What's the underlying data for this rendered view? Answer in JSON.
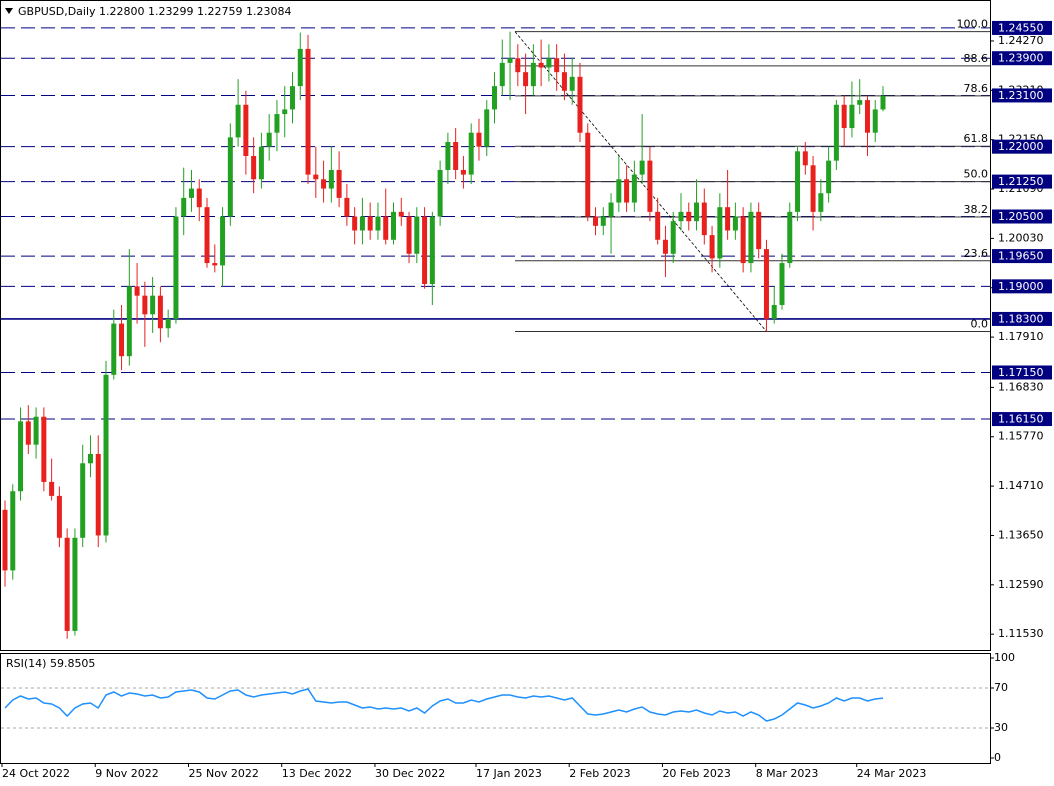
{
  "chart_data": {
    "type": "candlestick",
    "title": "GBPUSD,Daily  1.22800 1.23299 1.22759 1.23084",
    "up_color": "#22a022",
    "down_color": "#e8201e",
    "ylim": [
      1.1119,
      1.2515
    ],
    "yticks": [
      {
        "value": 1.2427,
        "label": "1.24270"
      },
      {
        "value": 1.2321,
        "label": "1.23210"
      },
      {
        "value": 1.2215,
        "label": "1.22150"
      },
      {
        "value": 1.2109,
        "label": "1.21090"
      },
      {
        "value": 1.2003,
        "label": "1.20030"
      },
      {
        "value": 1.1897,
        "label": "1.18970"
      },
      {
        "value": 1.1791,
        "label": "1.17910"
      },
      {
        "value": 1.1683,
        "label": "1.16830"
      },
      {
        "value": 1.1577,
        "label": "1.15770"
      },
      {
        "value": 1.1471,
        "label": "1.14710"
      },
      {
        "value": 1.1365,
        "label": "1.13650"
      },
      {
        "value": 1.1259,
        "label": "1.12590"
      },
      {
        "value": 1.1153,
        "label": "1.11530"
      }
    ],
    "categories": [
      "24 Oct 2022",
      null,
      null,
      null,
      null,
      null,
      null,
      null,
      null,
      null,
      null,
      null,
      "9 Nov 2022",
      null,
      null,
      null,
      null,
      null,
      null,
      null,
      null,
      null,
      null,
      null,
      "25 Nov 2022",
      null,
      null,
      null,
      null,
      null,
      null,
      null,
      null,
      null,
      null,
      null,
      "13 Dec 2022",
      null,
      null,
      null,
      null,
      null,
      null,
      null,
      null,
      null,
      null,
      null,
      "30 Dec 2022",
      null,
      null,
      null,
      null,
      null,
      null,
      null,
      null,
      null,
      null,
      null,
      null,
      "17 Jan 2023",
      null,
      null,
      null,
      null,
      null,
      null,
      null,
      null,
      null,
      null,
      null,
      "2 Feb 2023",
      null,
      null,
      null,
      null,
      null,
      null,
      null,
      null,
      null,
      null,
      null,
      "20 Feb 2023",
      null,
      null,
      null,
      null,
      null,
      null,
      null,
      null,
      null,
      null,
      null,
      "8 Mar 2023",
      null,
      null,
      null,
      null,
      null,
      null,
      null,
      null,
      null,
      null,
      null,
      null,
      "24 Mar 2023",
      null,
      null,
      null
    ],
    "ohlc": [
      [
        1.142,
        1.144,
        1.1255,
        1.129
      ],
      [
        1.129,
        1.1475,
        1.127,
        1.146
      ],
      [
        1.146,
        1.164,
        1.144,
        1.161
      ],
      [
        1.161,
        1.1645,
        1.154,
        1.156
      ],
      [
        1.156,
        1.164,
        1.153,
        1.162
      ],
      [
        1.162,
        1.164,
        1.146,
        1.148
      ],
      [
        1.148,
        1.153,
        1.144,
        1.145
      ],
      [
        1.145,
        1.147,
        1.134,
        1.136
      ],
      [
        1.136,
        1.138,
        1.1143,
        1.116
      ],
      [
        1.116,
        1.138,
        1.115,
        1.136
      ],
      [
        1.136,
        1.156,
        1.134,
        1.152
      ],
      [
        1.152,
        1.158,
        1.149,
        1.154
      ],
      [
        1.154,
        1.158,
        1.134,
        1.1365
      ],
      [
        1.1365,
        1.174,
        1.135,
        1.171
      ],
      [
        1.171,
        1.185,
        1.17,
        1.182
      ],
      [
        1.182,
        1.186,
        1.172,
        1.175
      ],
      [
        1.175,
        1.198,
        1.173,
        1.19
      ],
      [
        1.19,
        1.195,
        1.182,
        1.188
      ],
      [
        1.188,
        1.191,
        1.177,
        1.184
      ],
      [
        1.184,
        1.192,
        1.18,
        1.188
      ],
      [
        1.188,
        1.19,
        1.178,
        1.181
      ],
      [
        1.181,
        1.185,
        1.179,
        1.183
      ],
      [
        1.183,
        1.207,
        1.182,
        1.205
      ],
      [
        1.205,
        1.2155,
        1.201,
        1.209
      ],
      [
        1.209,
        1.215,
        1.206,
        1.211
      ],
      [
        1.211,
        1.213,
        1.204,
        1.207
      ],
      [
        1.207,
        1.209,
        1.194,
        1.195
      ],
      [
        1.195,
        1.199,
        1.193,
        1.1945
      ],
      [
        1.1945,
        1.207,
        1.19,
        1.205
      ],
      [
        1.205,
        1.225,
        1.203,
        1.222
      ],
      [
        1.222,
        1.2345,
        1.22,
        1.229
      ],
      [
        1.229,
        1.232,
        1.214,
        1.218
      ],
      [
        1.218,
        1.222,
        1.21,
        1.213
      ],
      [
        1.213,
        1.223,
        1.211,
        1.22
      ],
      [
        1.22,
        1.227,
        1.217,
        1.223
      ],
      [
        1.223,
        1.23,
        1.219,
        1.227
      ],
      [
        1.227,
        1.233,
        1.222,
        1.228
      ],
      [
        1.228,
        1.236,
        1.225,
        1.233
      ],
      [
        1.233,
        1.2445,
        1.23,
        1.241
      ],
      [
        1.241,
        1.244,
        1.212,
        1.214
      ],
      [
        1.214,
        1.22,
        1.209,
        1.213
      ],
      [
        1.213,
        1.217,
        1.208,
        1.211
      ],
      [
        1.211,
        1.22,
        1.208,
        1.215
      ],
      [
        1.215,
        1.219,
        1.207,
        1.209
      ],
      [
        1.209,
        1.212,
        1.203,
        1.205
      ],
      [
        1.205,
        1.207,
        1.199,
        1.202
      ],
      [
        1.202,
        1.209,
        1.199,
        1.205
      ],
      [
        1.205,
        1.208,
        1.2,
        1.202
      ],
      [
        1.202,
        1.208,
        1.2,
        1.205
      ],
      [
        1.205,
        1.211,
        1.199,
        1.2
      ],
      [
        1.2,
        1.208,
        1.199,
        1.206
      ],
      [
        1.206,
        1.209,
        1.203,
        1.205
      ],
      [
        1.205,
        1.206,
        1.195,
        1.197
      ],
      [
        1.197,
        1.207,
        1.195,
        1.205
      ],
      [
        1.205,
        1.207,
        1.1895,
        1.1905
      ],
      [
        1.1905,
        1.206,
        1.186,
        1.205
      ],
      [
        1.205,
        1.217,
        1.203,
        1.215
      ],
      [
        1.215,
        1.223,
        1.212,
        1.221
      ],
      [
        1.221,
        1.224,
        1.213,
        1.215
      ],
      [
        1.215,
        1.218,
        1.211,
        1.214
      ],
      [
        1.214,
        1.225,
        1.212,
        1.223
      ],
      [
        1.223,
        1.226,
        1.217,
        1.22
      ],
      [
        1.22,
        1.23,
        1.218,
        1.228
      ],
      [
        1.228,
        1.236,
        1.225,
        1.233
      ],
      [
        1.233,
        1.243,
        1.231,
        1.238
      ],
      [
        1.238,
        1.2447,
        1.23,
        1.239
      ],
      [
        1.239,
        1.242,
        1.233,
        1.236
      ],
      [
        1.236,
        1.24,
        1.227,
        1.233
      ],
      [
        1.233,
        1.242,
        1.231,
        1.238
      ],
      [
        1.238,
        1.243,
        1.233,
        1.237
      ],
      [
        1.237,
        1.242,
        1.234,
        1.239
      ],
      [
        1.239,
        1.242,
        1.232,
        1.236
      ],
      [
        1.236,
        1.24,
        1.23,
        1.232
      ],
      [
        1.232,
        1.239,
        1.229,
        1.235
      ],
      [
        1.235,
        1.238,
        1.221,
        1.223
      ],
      [
        1.223,
        1.225,
        1.204,
        1.205
      ],
      [
        1.205,
        1.207,
        1.201,
        1.203
      ],
      [
        1.203,
        1.207,
        1.201,
        1.205
      ],
      [
        1.205,
        1.21,
        1.197,
        1.208
      ],
      [
        1.208,
        1.218,
        1.206,
        1.213
      ],
      [
        1.213,
        1.216,
        1.206,
        1.208
      ],
      [
        1.208,
        1.217,
        1.206,
        1.214
      ],
      [
        1.214,
        1.227,
        1.212,
        1.217
      ],
      [
        1.217,
        1.22,
        1.204,
        1.206
      ],
      [
        1.206,
        1.209,
        1.199,
        1.2
      ],
      [
        1.2,
        1.203,
        1.192,
        1.197
      ],
      [
        1.197,
        1.206,
        1.195,
        1.204
      ],
      [
        1.204,
        1.21,
        1.202,
        1.206
      ],
      [
        1.206,
        1.208,
        1.202,
        1.204
      ],
      [
        1.204,
        1.213,
        1.202,
        1.208
      ],
      [
        1.208,
        1.211,
        1.199,
        1.201
      ],
      [
        1.201,
        1.203,
        1.193,
        1.196
      ],
      [
        1.196,
        1.21,
        1.194,
        1.207
      ],
      [
        1.207,
        1.215,
        1.2,
        1.202
      ],
      [
        1.202,
        1.208,
        1.2,
        1.205
      ],
      [
        1.205,
        1.207,
        1.193,
        1.195
      ],
      [
        1.195,
        1.208,
        1.193,
        1.206
      ],
      [
        1.206,
        1.208,
        1.196,
        1.198
      ],
      [
        1.198,
        1.2,
        1.1803,
        1.183
      ],
      [
        1.183,
        1.19,
        1.182,
        1.186
      ],
      [
        1.186,
        1.197,
        1.185,
        1.195
      ],
      [
        1.195,
        1.208,
        1.194,
        1.206
      ],
      [
        1.206,
        1.22,
        1.204,
        1.219
      ],
      [
        1.219,
        1.221,
        1.214,
        1.216
      ],
      [
        1.216,
        1.218,
        1.202,
        1.206
      ],
      [
        1.206,
        1.213,
        1.204,
        1.21
      ],
      [
        1.21,
        1.22,
        1.208,
        1.217
      ],
      [
        1.217,
        1.23,
        1.215,
        1.229
      ],
      [
        1.229,
        1.231,
        1.22,
        1.224
      ],
      [
        1.224,
        1.234,
        1.222,
        1.229
      ],
      [
        1.229,
        1.2345,
        1.227,
        1.23
      ],
      [
        1.23,
        1.231,
        1.218,
        1.223
      ],
      [
        1.223,
        1.23,
        1.221,
        1.228
      ],
      [
        1.228,
        1.23299,
        1.22759,
        1.23084
      ]
    ],
    "level_color": "#000080",
    "levels": [
      {
        "value": 1.2455,
        "label": "1.24550",
        "style": "dashed"
      },
      {
        "value": 1.239,
        "label": "1.23900",
        "style": "dashed"
      },
      {
        "value": 1.231,
        "label": "1.23100",
        "style": "dashed"
      },
      {
        "value": 1.22,
        "label": "1.22000",
        "style": "dashed"
      },
      {
        "value": 1.2125,
        "label": "1.21250",
        "style": "dashed"
      },
      {
        "value": 1.205,
        "label": "1.20500",
        "style": "dashed"
      },
      {
        "value": 1.1965,
        "label": "1.19650",
        "style": "dashed"
      },
      {
        "value": 1.19,
        "label": "1.19000",
        "style": "dashed"
      },
      {
        "value": 1.183,
        "label": "1.18300",
        "style": "solid"
      },
      {
        "value": 1.1715,
        "label": "1.17150",
        "style": "dashed"
      },
      {
        "value": 1.1615,
        "label": "1.16150",
        "style": "dashed"
      }
    ],
    "fib": {
      "high": 1.2447,
      "low": 1.1803,
      "color": "#333333",
      "levels": [
        {
          "value": 100,
          "label": "100.0"
        },
        88.6,
        78.6,
        61.8,
        {
          "value": 50,
          "label": "50.0"
        },
        38.2,
        23.6,
        {
          "value": 0,
          "label": "0.0"
        }
      ]
    },
    "rsi": {
      "title": "RSI(14) 59.8505",
      "color": "#1e90ff",
      "ylim": [
        -5,
        105
      ],
      "yticks": [
        100,
        70,
        30,
        0
      ],
      "grid_levels": [
        70,
        30
      ],
      "values": [
        50,
        58,
        62,
        59,
        60,
        55,
        54,
        50,
        42,
        50,
        54,
        55,
        50,
        63,
        66,
        62,
        65,
        64,
        62,
        63,
        60,
        61,
        66,
        67,
        68,
        66,
        60,
        59,
        63,
        67,
        68,
        63,
        61,
        63,
        64,
        65,
        66,
        64,
        67,
        69,
        57,
        56,
        55,
        56,
        56,
        53,
        50,
        51,
        49,
        50,
        49,
        50,
        47,
        50,
        45,
        52,
        57,
        59,
        55,
        55,
        58,
        56,
        59,
        61,
        63,
        63,
        61,
        60,
        62,
        61,
        62,
        60,
        58,
        60,
        52,
        44,
        43,
        44,
        46,
        48,
        46,
        49,
        51,
        46,
        44,
        43,
        46,
        47,
        46,
        48,
        45,
        43,
        47,
        45,
        46,
        42,
        46,
        43,
        37,
        39,
        43,
        49,
        55,
        53,
        50,
        52,
        55,
        60,
        57,
        60,
        60,
        57,
        59,
        59.85
      ]
    }
  }
}
